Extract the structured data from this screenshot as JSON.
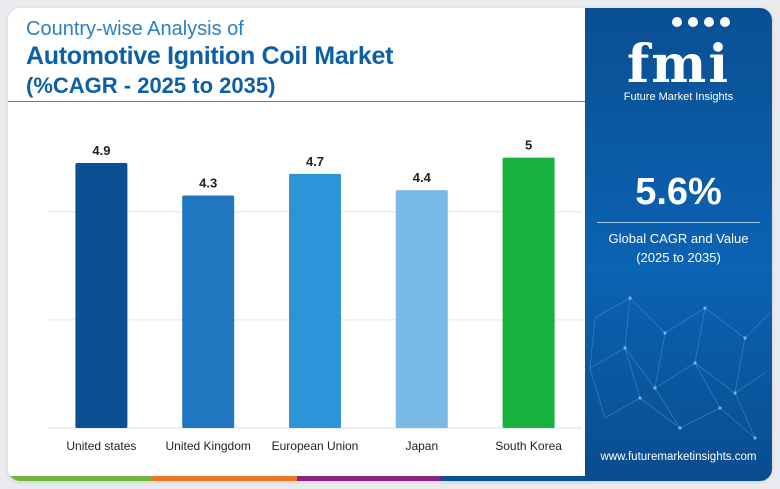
{
  "header": {
    "line1": "Country-wise Analysis of",
    "line2": "Automotive Ignition Coil Market",
    "line3": "(%CAGR - 2025 to 2035)"
  },
  "chart_data": {
    "type": "bar",
    "categories": [
      "United states",
      "United Kingdom",
      "European Union",
      "Japan",
      "South Korea"
    ],
    "values": [
      4.9,
      4.3,
      4.7,
      4.4,
      5
    ],
    "value_labels": [
      "4.9",
      "4.3",
      "4.7",
      "4.4",
      "5"
    ],
    "colors": [
      "#0b5192",
      "#1f78bf",
      "#2d94d9",
      "#79b9e6",
      "#16b13f"
    ],
    "ylim": [
      0,
      5.4
    ],
    "gridlines": [
      2,
      4
    ],
    "grid": true,
    "title": "",
    "xlabel": "",
    "ylabel": ""
  },
  "bottom_bar_colors": [
    "#72b83f",
    "#f07522",
    "#84267f",
    "#0b5192"
  ],
  "sidebar": {
    "logo_text": "fmi",
    "logo_subtitle": "Future Market Insights",
    "headline_value": "5.6%",
    "headline_label_1": "Global CAGR and Value",
    "headline_label_2": "(2025 to 2035)",
    "website": "www.futuremarketinsights.com",
    "background_color": "#0b5fa8"
  }
}
